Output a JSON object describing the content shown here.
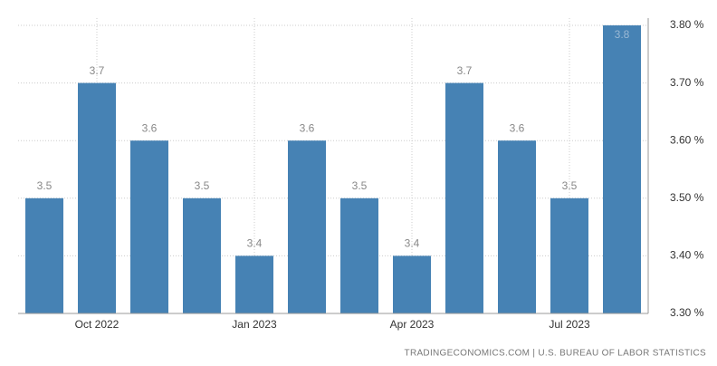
{
  "chart_data": {
    "type": "bar",
    "categories": [
      null,
      "Oct 2022",
      null,
      null,
      "Jan 2023",
      null,
      null,
      "Apr 2023",
      null,
      null,
      "Jul 2023",
      null
    ],
    "values": [
      3.5,
      3.7,
      3.6,
      3.5,
      3.4,
      3.6,
      3.5,
      3.4,
      3.7,
      3.6,
      3.5,
      3.8
    ],
    "color": "#4682b4",
    "ylim": [
      3.3,
      3.8
    ],
    "yticks": [
      {
        "value": 3.3,
        "label": "3.30 %"
      },
      {
        "value": 3.4,
        "label": "3.40 %"
      },
      {
        "value": 3.5,
        "label": "3.50 %"
      },
      {
        "value": 3.6,
        "label": "3.60 %"
      },
      {
        "value": 3.7,
        "label": "3.70 %"
      },
      {
        "value": 3.8,
        "label": "3.80 %"
      }
    ],
    "grid": true,
    "source": "TRADINGECONOMICS.COM | U.S. BUREAU OF LABOR STATISTICS"
  }
}
